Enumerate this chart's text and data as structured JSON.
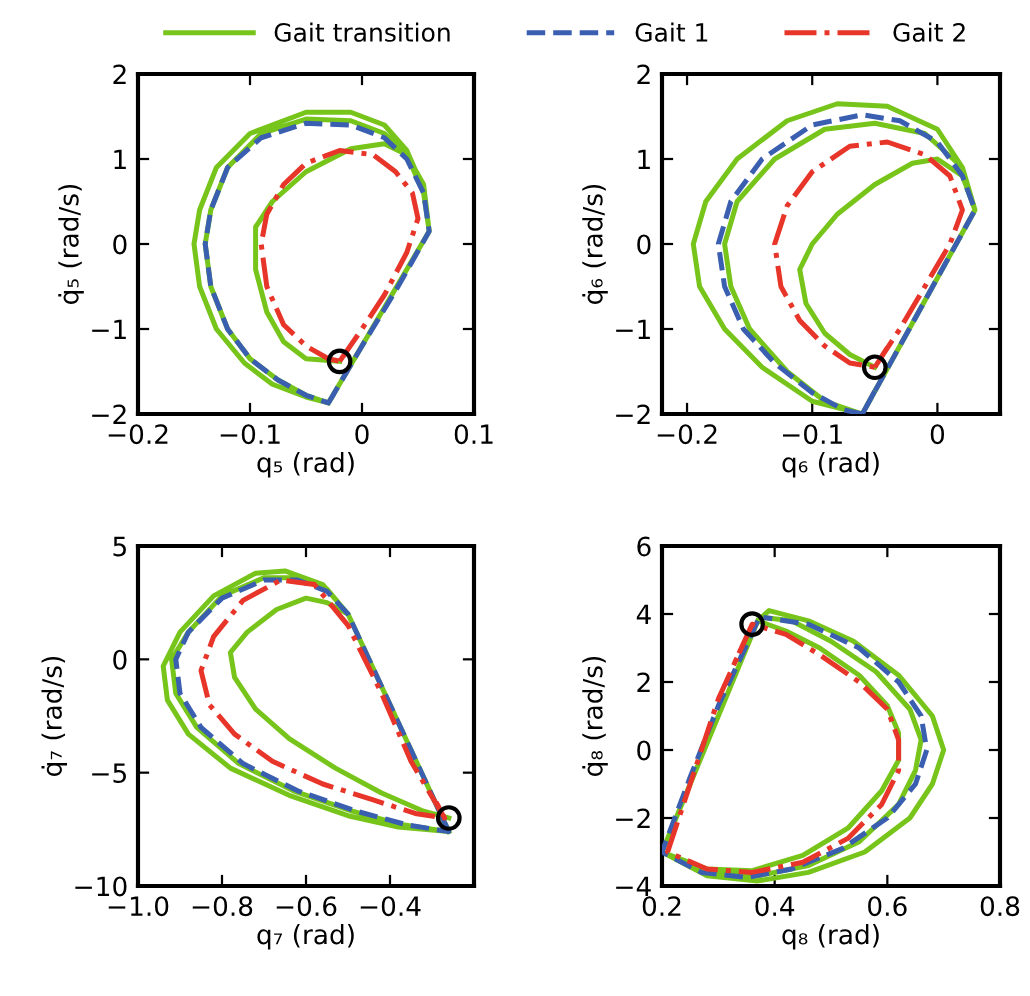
{
  "chart_data": [
    {
      "type": "line",
      "xlabel": "q₅ (rad)",
      "ylabel": "q̇₅ (rad/s)",
      "xlim": [
        -0.2,
        0.1
      ],
      "xticks": [
        -0.2,
        -0.1,
        0,
        0.1
      ],
      "ylim": [
        -2,
        2
      ],
      "yticks": [
        -2,
        -1,
        0,
        1,
        2
      ],
      "grid": false,
      "legend": "top",
      "series": [
        {
          "name": "Gait transition",
          "color": "#77c41a",
          "line_style": "solid",
          "x": [
            -0.03,
            0.06,
            0.055,
            0.04,
            0.02,
            -0.01,
            -0.05,
            -0.1,
            -0.13,
            -0.145,
            -0.15,
            -0.145,
            -0.13,
            -0.105,
            -0.08,
            -0.05,
            -0.03,
            0.06,
            0.055,
            0.04,
            0.02,
            -0.01,
            -0.05,
            -0.09,
            -0.12,
            -0.135,
            -0.14,
            -0.135,
            -0.12,
            -0.1,
            -0.075,
            -0.05,
            -0.03,
            0.06,
            0.055,
            0.04,
            0.02,
            -0.01,
            -0.05,
            -0.08,
            -0.095,
            -0.095,
            -0.085,
            -0.07,
            -0.05,
            -0.02
          ],
          "values": [
            -1.87,
            0.15,
            0.65,
            1.1,
            1.4,
            1.55,
            1.55,
            1.3,
            0.9,
            0.4,
            0.0,
            -0.5,
            -1.0,
            -1.4,
            -1.65,
            -1.8,
            -1.87,
            0.15,
            0.6,
            1.05,
            1.3,
            1.45,
            1.47,
            1.3,
            0.9,
            0.4,
            0.0,
            -0.5,
            -1.0,
            -1.35,
            -1.6,
            -1.78,
            -1.87,
            0.15,
            0.7,
            1.05,
            1.18,
            1.12,
            0.85,
            0.5,
            0.2,
            -0.3,
            -0.8,
            -1.15,
            -1.35,
            -1.38
          ]
        },
        {
          "name": "Gait 1",
          "color": "#3a5fb0",
          "line_style": "dashed",
          "x": [
            -0.03,
            0.0,
            0.03,
            0.06,
            0.055,
            0.04,
            0.02,
            -0.01,
            -0.05,
            -0.09,
            -0.12,
            -0.135,
            -0.14,
            -0.135,
            -0.12,
            -0.1,
            -0.075,
            -0.05,
            -0.03,
            -0.025
          ],
          "values": [
            -1.87,
            -1.2,
            -0.55,
            0.15,
            0.6,
            1.0,
            1.25,
            1.4,
            1.42,
            1.25,
            0.9,
            0.4,
            0.0,
            -0.5,
            -1.0,
            -1.35,
            -1.6,
            -1.78,
            -1.87,
            -1.76
          ]
        },
        {
          "name": "Gait 2",
          "color": "#e8352a",
          "line_style": "dashdot",
          "x": [
            -0.02,
            0.0,
            0.02,
            0.04,
            0.05,
            0.045,
            0.03,
            0.01,
            -0.02,
            -0.05,
            -0.07,
            -0.085,
            -0.09,
            -0.085,
            -0.07,
            -0.05,
            -0.03,
            -0.02,
            -0.01
          ],
          "values": [
            -1.38,
            -1.0,
            -0.6,
            -0.1,
            0.3,
            0.6,
            0.85,
            1.05,
            1.1,
            0.95,
            0.7,
            0.35,
            0.0,
            -0.5,
            -0.95,
            -1.2,
            -1.35,
            -1.38,
            -1.2
          ]
        },
        {
          "type": "scatter",
          "marker": "circle",
          "color": "#000000",
          "x": [
            -0.02
          ],
          "values": [
            -1.38
          ]
        }
      ]
    },
    {
      "type": "line",
      "xlabel": "q₆ (rad)",
      "ylabel": "q̇₆ (rad/s)",
      "xlim": [
        -0.22,
        0.05
      ],
      "xticks": [
        -0.2,
        -0.1,
        0
      ],
      "ylim": [
        -2,
        2
      ],
      "yticks": [
        -2,
        -1,
        0,
        1,
        2
      ],
      "grid": false,
      "series": [
        {
          "color": "#77c41a",
          "line_style": "solid",
          "x": [
            -0.06,
            0.03,
            0.02,
            0.0,
            -0.04,
            -0.08,
            -0.12,
            -0.16,
            -0.185,
            -0.195,
            -0.19,
            -0.17,
            -0.14,
            -0.1,
            -0.06,
            0.03,
            0.02,
            -0.01,
            -0.05,
            -0.09,
            -0.13,
            -0.16,
            -0.17,
            -0.165,
            -0.15,
            -0.12,
            -0.09,
            -0.06,
            0.03,
            0.02,
            0.0,
            -0.02,
            -0.05,
            -0.08,
            -0.1,
            -0.11,
            -0.105,
            -0.09,
            -0.07,
            -0.05
          ],
          "values": [
            -2.0,
            0.4,
            0.9,
            1.35,
            1.62,
            1.65,
            1.45,
            1.0,
            0.5,
            0.0,
            -0.5,
            -1.0,
            -1.45,
            -1.85,
            -2.0,
            0.4,
            0.9,
            1.3,
            1.42,
            1.35,
            1.0,
            0.5,
            0.0,
            -0.5,
            -1.0,
            -1.5,
            -1.85,
            -2.0,
            0.4,
            0.8,
            1.0,
            0.95,
            0.7,
            0.35,
            0.0,
            -0.3,
            -0.7,
            -1.05,
            -1.3,
            -1.45
          ]
        },
        {
          "color": "#3a5fb0",
          "line_style": "dashed",
          "x": [
            -0.06,
            -0.03,
            0.0,
            0.03,
            0.02,
            0.0,
            -0.03,
            -0.06,
            -0.1,
            -0.14,
            -0.165,
            -0.175,
            -0.17,
            -0.155,
            -0.13,
            -0.1,
            -0.075,
            -0.06,
            -0.05
          ],
          "values": [
            -2.0,
            -1.2,
            -0.4,
            0.4,
            0.8,
            1.2,
            1.45,
            1.52,
            1.4,
            1.0,
            0.5,
            0.0,
            -0.5,
            -1.0,
            -1.4,
            -1.75,
            -1.95,
            -2.0,
            -1.73
          ]
        },
        {
          "color": "#e8352a",
          "line_style": "dashdot",
          "x": [
            -0.05,
            -0.03,
            -0.01,
            0.01,
            0.02,
            0.01,
            -0.01,
            -0.04,
            -0.07,
            -0.1,
            -0.12,
            -0.13,
            -0.125,
            -0.11,
            -0.09,
            -0.07,
            -0.05,
            -0.04
          ],
          "values": [
            -1.45,
            -1.0,
            -0.5,
            0.0,
            0.4,
            0.8,
            1.05,
            1.2,
            1.15,
            0.85,
            0.45,
            0.0,
            -0.5,
            -0.9,
            -1.2,
            -1.4,
            -1.45,
            -1.22
          ]
        },
        {
          "type": "scatter",
          "marker": "circle",
          "color": "#000000",
          "x": [
            -0.05
          ],
          "values": [
            -1.45
          ]
        }
      ]
    },
    {
      "type": "line",
      "xlabel": "q₇ (rad)",
      "ylabel": "q̇₇ (rad/s)",
      "xlim": [
        -1.0,
        -0.2
      ],
      "xticks": [
        {
          "value": -1.0,
          "label": "−1.0"
        },
        {
          "value": -0.8,
          "label": "−0.8"
        },
        {
          "value": -0.6,
          "label": "−0.6"
        },
        {
          "value": -0.4,
          "label": "−0.4"
        }
      ],
      "ylim": [
        -10,
        5
      ],
      "yticks": [
        -10,
        -5,
        0,
        5
      ],
      "grid": false,
      "series": [
        {
          "color": "#77c41a",
          "line_style": "solid",
          "x": [
            -0.26,
            -0.5,
            -0.56,
            -0.65,
            -0.72,
            -0.82,
            -0.9,
            -0.94,
            -0.93,
            -0.88,
            -0.78,
            -0.64,
            -0.5,
            -0.38,
            -0.26,
            -0.5,
            -0.55,
            -0.62,
            -0.7,
            -0.8,
            -0.88,
            -0.92,
            -0.91,
            -0.86,
            -0.76,
            -0.63,
            -0.49,
            -0.37,
            -0.26,
            -0.5,
            -0.55,
            -0.6,
            -0.67,
            -0.74,
            -0.78,
            -0.77,
            -0.72,
            -0.64,
            -0.53,
            -0.42,
            -0.32,
            -0.26
          ],
          "values": [
            -7.6,
            2.0,
            3.3,
            3.9,
            3.8,
            2.8,
            1.2,
            -0.3,
            -1.8,
            -3.3,
            -4.8,
            -6.0,
            -6.9,
            -7.4,
            -7.6,
            2.0,
            3.1,
            3.6,
            3.6,
            2.8,
            1.2,
            0.0,
            -1.5,
            -3.0,
            -4.6,
            -5.8,
            -6.7,
            -7.3,
            -7.6,
            2.0,
            2.5,
            2.7,
            2.2,
            1.2,
            0.3,
            -0.8,
            -2.2,
            -3.5,
            -4.8,
            -5.9,
            -6.7,
            -7.0
          ]
        },
        {
          "color": "#3a5fb0",
          "line_style": "dashed",
          "x": [
            -0.26,
            -0.38,
            -0.5,
            -0.55,
            -0.62,
            -0.7,
            -0.8,
            -0.88,
            -0.91,
            -0.9,
            -0.85,
            -0.75,
            -0.62,
            -0.48,
            -0.36,
            -0.26,
            -0.29
          ],
          "values": [
            -7.6,
            -2.8,
            2.0,
            3.0,
            3.5,
            3.5,
            2.7,
            1.2,
            0.0,
            -1.5,
            -3.0,
            -4.6,
            -5.8,
            -6.7,
            -7.3,
            -7.6,
            -6.4
          ]
        },
        {
          "color": "#e8352a",
          "line_style": "dashdot",
          "x": [
            -0.27,
            -0.35,
            -0.42,
            -0.5,
            -0.58,
            -0.66,
            -0.75,
            -0.82,
            -0.85,
            -0.83,
            -0.77,
            -0.68,
            -0.56,
            -0.44,
            -0.34,
            -0.27,
            -0.29
          ],
          "values": [
            -7.0,
            -4.5,
            -1.5,
            1.5,
            3.3,
            3.5,
            2.6,
            1.0,
            -0.5,
            -2.0,
            -3.3,
            -4.5,
            -5.5,
            -6.2,
            -6.8,
            -7.0,
            -6.3
          ]
        },
        {
          "type": "scatter",
          "marker": "circle",
          "color": "#000000",
          "x": [
            -0.26
          ],
          "values": [
            -7.0
          ]
        }
      ]
    },
    {
      "type": "line",
      "xlabel": "q₈ (rad)",
      "ylabel": "q̇₈ (rad/s)",
      "xlim": [
        0.2,
        0.8
      ],
      "xticks": [
        0.2,
        0.4,
        0.6,
        0.8
      ],
      "ylim": [
        -4,
        6
      ],
      "yticks": [
        -4,
        -2,
        0,
        2,
        4,
        6
      ],
      "grid": false,
      "series": [
        {
          "color": "#77c41a",
          "line_style": "solid",
          "x": [
            0.37,
            0.2,
            0.28,
            0.37,
            0.46,
            0.56,
            0.64,
            0.68,
            0.7,
            0.68,
            0.62,
            0.54,
            0.46,
            0.39,
            0.37,
            0.2,
            0.28,
            0.37,
            0.46,
            0.55,
            0.62,
            0.65,
            0.66,
            0.64,
            0.58,
            0.5,
            0.43,
            0.38,
            0.37,
            0.2,
            0.28,
            0.36,
            0.45,
            0.53,
            0.59,
            0.62,
            0.62,
            0.6,
            0.55,
            0.48,
            0.42,
            0.37,
            0.33
          ],
          "values": [
            3.8,
            -3.0,
            -3.7,
            -3.85,
            -3.6,
            -3.0,
            -2.0,
            -1.0,
            0.0,
            1.0,
            2.2,
            3.2,
            3.8,
            4.1,
            3.8,
            -3.0,
            -3.6,
            -3.7,
            -3.4,
            -2.7,
            -1.6,
            -0.6,
            0.3,
            1.2,
            2.3,
            3.2,
            3.8,
            3.9,
            3.8,
            -3.0,
            -3.5,
            -3.55,
            -3.1,
            -2.3,
            -1.2,
            -0.3,
            0.5,
            1.3,
            2.2,
            3.0,
            3.5,
            3.8,
            2.2
          ]
        },
        {
          "color": "#3a5fb0",
          "line_style": "dashed",
          "x": [
            0.37,
            0.3,
            0.25,
            0.2,
            0.27,
            0.35,
            0.43,
            0.52,
            0.6,
            0.65,
            0.67,
            0.66,
            0.62,
            0.55,
            0.46,
            0.38
          ],
          "values": [
            3.8,
            1.3,
            -0.8,
            -3.0,
            -3.6,
            -3.75,
            -3.5,
            -2.9,
            -2.0,
            -1.0,
            0.0,
            1.0,
            2.0,
            3.0,
            3.7,
            3.9
          ]
        },
        {
          "color": "#e8352a",
          "line_style": "dashdot",
          "x": [
            0.36,
            0.3,
            0.25,
            0.21,
            0.28,
            0.36,
            0.45,
            0.53,
            0.59,
            0.62,
            0.62,
            0.6,
            0.55,
            0.48,
            0.42,
            0.36,
            0.33
          ],
          "values": [
            3.7,
            1.5,
            -1.0,
            -3.0,
            -3.5,
            -3.6,
            -3.3,
            -2.6,
            -1.6,
            -0.6,
            0.3,
            1.2,
            2.0,
            2.8,
            3.4,
            3.7,
            2.6
          ]
        },
        {
          "type": "scatter",
          "marker": "circle",
          "color": "#000000",
          "x": [
            0.36
          ],
          "values": [
            3.7
          ]
        }
      ]
    }
  ]
}
